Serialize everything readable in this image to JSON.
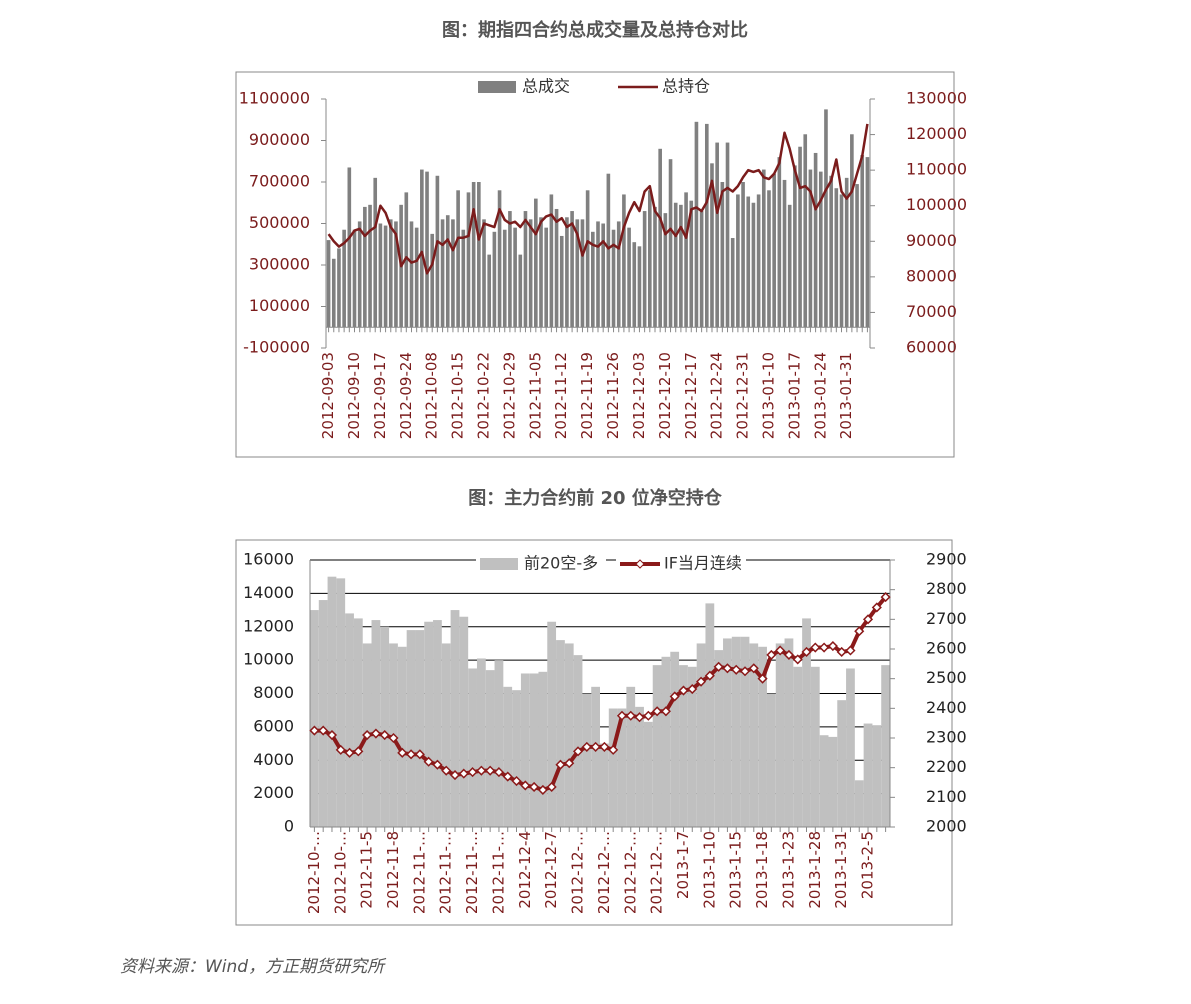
{
  "chart_data": [
    {
      "type": "bar_line",
      "title": "图：期指四合约总成交量及总持仓对比",
      "legend": "top",
      "categories": [
        "2012-09-03",
        null,
        null,
        null,
        null,
        "2012-09-10",
        null,
        null,
        null,
        null,
        "2012-09-17",
        null,
        null,
        null,
        null,
        "2012-09-24",
        null,
        null,
        null,
        null,
        "2012-10-08",
        null,
        null,
        null,
        null,
        "2012-10-15",
        null,
        null,
        null,
        null,
        "2012-10-22",
        null,
        null,
        null,
        null,
        "2012-10-29",
        null,
        null,
        null,
        null,
        "2012-11-05",
        null,
        null,
        null,
        null,
        "2012-11-12",
        null,
        null,
        null,
        null,
        "2012-11-19",
        null,
        null,
        null,
        null,
        "2012-11-26",
        null,
        null,
        null,
        null,
        "2012-12-03",
        null,
        null,
        null,
        null,
        "2012-12-10",
        null,
        null,
        null,
        null,
        "2012-12-17",
        null,
        null,
        null,
        null,
        "2012-12-24",
        null,
        null,
        null,
        null,
        "2012-12-31",
        null,
        null,
        null,
        null,
        "2013-01-10",
        null,
        null,
        null,
        null,
        "2013-01-17",
        null,
        null,
        null,
        null,
        "2013-01-24",
        null,
        null,
        null,
        null,
        "2013-01-31",
        null,
        null,
        null,
        null
      ],
      "series": [
        {
          "name": "总成交",
          "kind": "bar",
          "color": "#808080",
          "values": [
            420000,
            330000,
            380000,
            470000,
            770000,
            470000,
            510000,
            580000,
            590000,
            720000,
            500000,
            490000,
            520000,
            510000,
            590000,
            650000,
            510000,
            480000,
            760000,
            750000,
            450000,
            730000,
            520000,
            540000,
            520000,
            660000,
            470000,
            650000,
            700000,
            700000,
            520000,
            350000,
            460000,
            660000,
            470000,
            560000,
            480000,
            350000,
            560000,
            520000,
            620000,
            530000,
            480000,
            640000,
            570000,
            440000,
            530000,
            560000,
            520000,
            520000,
            660000,
            460000,
            510000,
            500000,
            740000,
            470000,
            510000,
            640000,
            480000,
            410000,
            390000,
            560000,
            660000,
            580000,
            860000,
            550000,
            810000,
            600000,
            590000,
            650000,
            610000,
            990000,
            560000,
            980000,
            790000,
            890000,
            700000,
            890000,
            430000,
            640000,
            700000,
            630000,
            600000,
            640000,
            760000,
            660000,
            740000,
            820000,
            710000,
            590000,
            780000,
            870000,
            930000,
            760000,
            840000,
            750000,
            1050000,
            730000,
            670000,
            640000,
            720000,
            930000,
            690000,
            830000,
            820000
          ]
        },
        {
          "name": "总持仓",
          "kind": "line",
          "axis": "y2",
          "color": "#7b1c1c",
          "values": [
            92000,
            90000,
            88500,
            89500,
            91000,
            93000,
            93500,
            91500,
            93000,
            94000,
            100000,
            98000,
            94000,
            92000,
            83000,
            85500,
            84000,
            84500,
            87000,
            81000,
            83500,
            90000,
            89000,
            90500,
            87500,
            91000,
            91000,
            91500,
            99000,
            90500,
            95000,
            94500,
            94000,
            99000,
            96000,
            95000,
            95500,
            94000,
            96000,
            94000,
            92000,
            95500,
            97000,
            97500,
            95500,
            96500,
            94000,
            95000,
            92000,
            86000,
            90000,
            89000,
            88500,
            90000,
            88000,
            89000,
            88000,
            94000,
            98000,
            101000,
            98500,
            104000,
            105500,
            98500,
            96500,
            92000,
            93500,
            91500,
            94000,
            91000,
            99000,
            99500,
            98500,
            101000,
            107000,
            98000,
            104000,
            105000,
            104000,
            105500,
            108000,
            110000,
            109500,
            110000,
            108000,
            107500,
            109000,
            112000,
            120500,
            116000,
            110000,
            105000,
            105500,
            104000,
            99000,
            101500,
            104500,
            107000,
            113000,
            104000,
            102000,
            104000,
            109000,
            114000,
            123000
          ]
        }
      ],
      "ylim": [
        -100000,
        1100000
      ],
      "yticks": [
        -100000,
        100000,
        300000,
        500000,
        700000,
        900000,
        1100000
      ],
      "y2lim": [
        60000,
        130000
      ],
      "y2ticks": [
        60000,
        70000,
        80000,
        90000,
        100000,
        110000,
        120000,
        130000
      ],
      "grid": false
    },
    {
      "type": "bar_line",
      "title": "图：主力合约前 20 位净空持仓",
      "legend": "top",
      "categories": [
        "2012-10-…",
        null,
        null,
        "2012-10-…",
        null,
        null,
        "2012-11-5",
        null,
        null,
        "2012-11-8",
        null,
        null,
        "2012-11-…",
        null,
        null,
        "2012-11-…",
        null,
        null,
        "2012-11-…",
        null,
        null,
        "2012-11-…",
        null,
        null,
        "2012-12-4",
        null,
        null,
        "2012-12-7",
        null,
        null,
        "2012-12-…",
        null,
        null,
        "2012-12-…",
        null,
        null,
        "2012-12-…",
        null,
        null,
        "2012-12-…",
        null,
        null,
        "2013-1-7",
        null,
        null,
        "2013-1-10",
        null,
        null,
        "2013-1-15",
        null,
        null,
        "2013-1-18",
        null,
        null,
        "2013-1-23",
        null,
        null,
        "2013-1-28",
        null,
        null,
        "2013-1-31",
        null,
        null,
        "2013-2-5",
        null,
        null
      ],
      "series": [
        {
          "name": "前20空-多",
          "kind": "bar",
          "color": "#c0c0c0",
          "values": [
            13000,
            13600,
            15000,
            14900,
            12800,
            12500,
            11000,
            12400,
            12000,
            11000,
            10800,
            11800,
            11800,
            12300,
            12400,
            11000,
            13000,
            12600,
            9500,
            10100,
            9400,
            10000,
            8400,
            8200,
            9200,
            9200,
            9300,
            12300,
            11200,
            11000,
            10300,
            8000,
            8400,
            5000,
            7100,
            7100,
            8400,
            7200,
            6300,
            9700,
            10200,
            10500,
            9700,
            9600,
            11000,
            13400,
            10600,
            11300,
            11400,
            11400,
            11000,
            10800,
            8000,
            11000,
            11300,
            9600,
            12500,
            9600,
            5500,
            5400,
            7600,
            9500,
            2800,
            6200,
            6100,
            9700
          ]
        },
        {
          "name": "IF当月连续",
          "kind": "line",
          "marker": "diamond",
          "axis": "y2",
          "color": "#8b1a1a",
          "values": [
            2325,
            2325,
            2310,
            2260,
            2250,
            2255,
            2310,
            2315,
            2310,
            2300,
            2250,
            2245,
            2245,
            2220,
            2210,
            2190,
            2175,
            2180,
            2185,
            2190,
            2190,
            2185,
            2170,
            2155,
            2140,
            2135,
            2125,
            2135,
            2210,
            2215,
            2255,
            2270,
            2270,
            2270,
            2260,
            2375,
            2375,
            2370,
            2375,
            2390,
            2390,
            2440,
            2460,
            2465,
            2490,
            2510,
            2540,
            2535,
            2530,
            2525,
            2535,
            2500,
            2580,
            2595,
            2580,
            2565,
            2590,
            2605,
            2605,
            2610,
            2590,
            2595,
            2660,
            2700,
            2740,
            2775
          ]
        }
      ],
      "ylim": [
        0,
        16000
      ],
      "yticks": [
        0,
        2000,
        4000,
        6000,
        8000,
        10000,
        12000,
        14000,
        16000
      ],
      "y2lim": [
        2000,
        2900
      ],
      "y2ticks": [
        2000,
        2100,
        2200,
        2300,
        2400,
        2500,
        2600,
        2700,
        2800,
        2900
      ],
      "grid": true
    }
  ],
  "source": "资料来源：Wind，方正期货研究所"
}
